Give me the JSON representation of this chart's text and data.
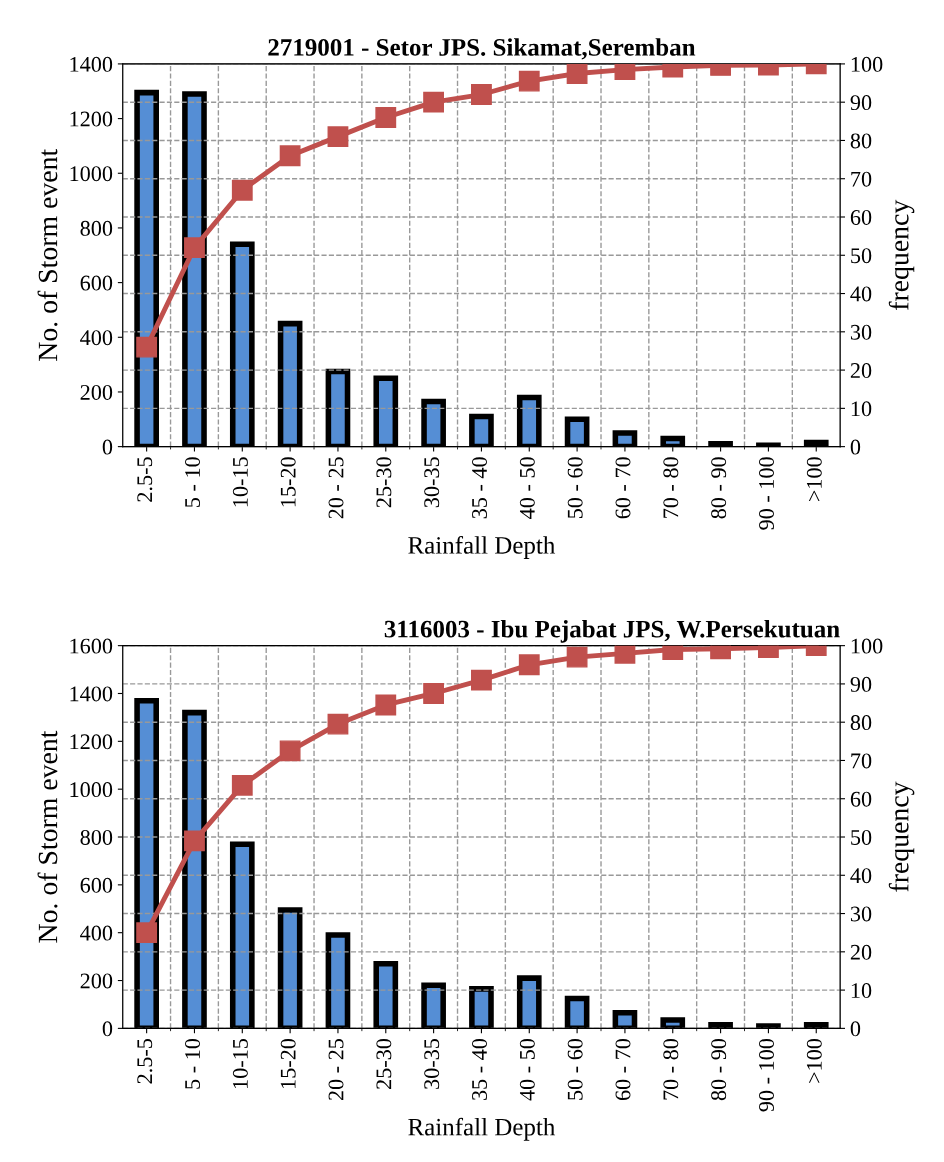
{
  "chart_data": [
    {
      "type": "bar",
      "title": "2719001 - Setor JPS. Sikamat,Seremban",
      "xlabel": "Rainfall Depth",
      "ylabel": "No. of Storm event",
      "y2label": "frequency",
      "categories": [
        "2.5-5",
        "5 - 10",
        "10-15",
        "15-20",
        "20 - 25",
        "25-30",
        "30-35",
        "35 - 40",
        "40 - 50",
        "50 - 60",
        "60 - 70",
        "70 - 80",
        "80 - 90",
        "90 - 100",
        ">100"
      ],
      "series": [
        {
          "color": "#558ed5",
          "values": [
            1295,
            1290,
            740,
            450,
            275,
            250,
            165,
            110,
            180,
            100,
            50,
            30,
            10,
            5,
            15
          ]
        },
        {
          "type": "line",
          "axis": "y2",
          "color": "#c0504d",
          "marker": "square",
          "line_style": "solid",
          "values": [
            26,
            52,
            67,
            76,
            81,
            86,
            90,
            92,
            95.5,
            97.5,
            98.5,
            99.2,
            99.6,
            99.7,
            100
          ]
        }
      ],
      "ylim": [
        0,
        1400
      ],
      "yticks": [
        0,
        200,
        400,
        600,
        800,
        1000,
        1200,
        1400
      ],
      "y2lim": [
        0,
        100
      ],
      "y2ticks": [
        0,
        10,
        20,
        30,
        40,
        50,
        60,
        70,
        80,
        90,
        100
      ],
      "grid": true,
      "legend": false
    },
    {
      "type": "bar",
      "title": "3116003 - Ibu Pejabat JPS, W.Persekutuan",
      "xlabel": "Rainfall Depth",
      "ylabel": "No. of Storm event",
      "y2label": "frequency",
      "categories": [
        "2.5-5",
        "5 - 10",
        "10-15",
        "15-20",
        "20 - 25",
        "25-30",
        "30-35",
        "35 - 40",
        "40 - 50",
        "50 - 60",
        "60 - 70",
        "70 - 80",
        "80 - 90",
        "90 - 100",
        ">100"
      ],
      "series": [
        {
          "color": "#558ed5",
          "values": [
            1370,
            1320,
            770,
            495,
            390,
            270,
            180,
            165,
            210,
            125,
            65,
            35,
            15,
            10,
            15
          ]
        },
        {
          "type": "line",
          "axis": "y2",
          "color": "#c0504d",
          "marker": "square",
          "line_style": "solid",
          "values": [
            25,
            49,
            63.5,
            72.5,
            79.5,
            84.5,
            87.5,
            91,
            95,
            97,
            98,
            99,
            99.2,
            99.5,
            100
          ]
        }
      ],
      "ylim": [
        0,
        1600
      ],
      "yticks": [
        0,
        200,
        400,
        600,
        800,
        1000,
        1200,
        1400,
        1600
      ],
      "y2lim": [
        0,
        100
      ],
      "y2ticks": [
        0,
        10,
        20,
        30,
        40,
        50,
        60,
        70,
        80,
        90,
        100
      ],
      "grid": true,
      "legend": false
    }
  ]
}
